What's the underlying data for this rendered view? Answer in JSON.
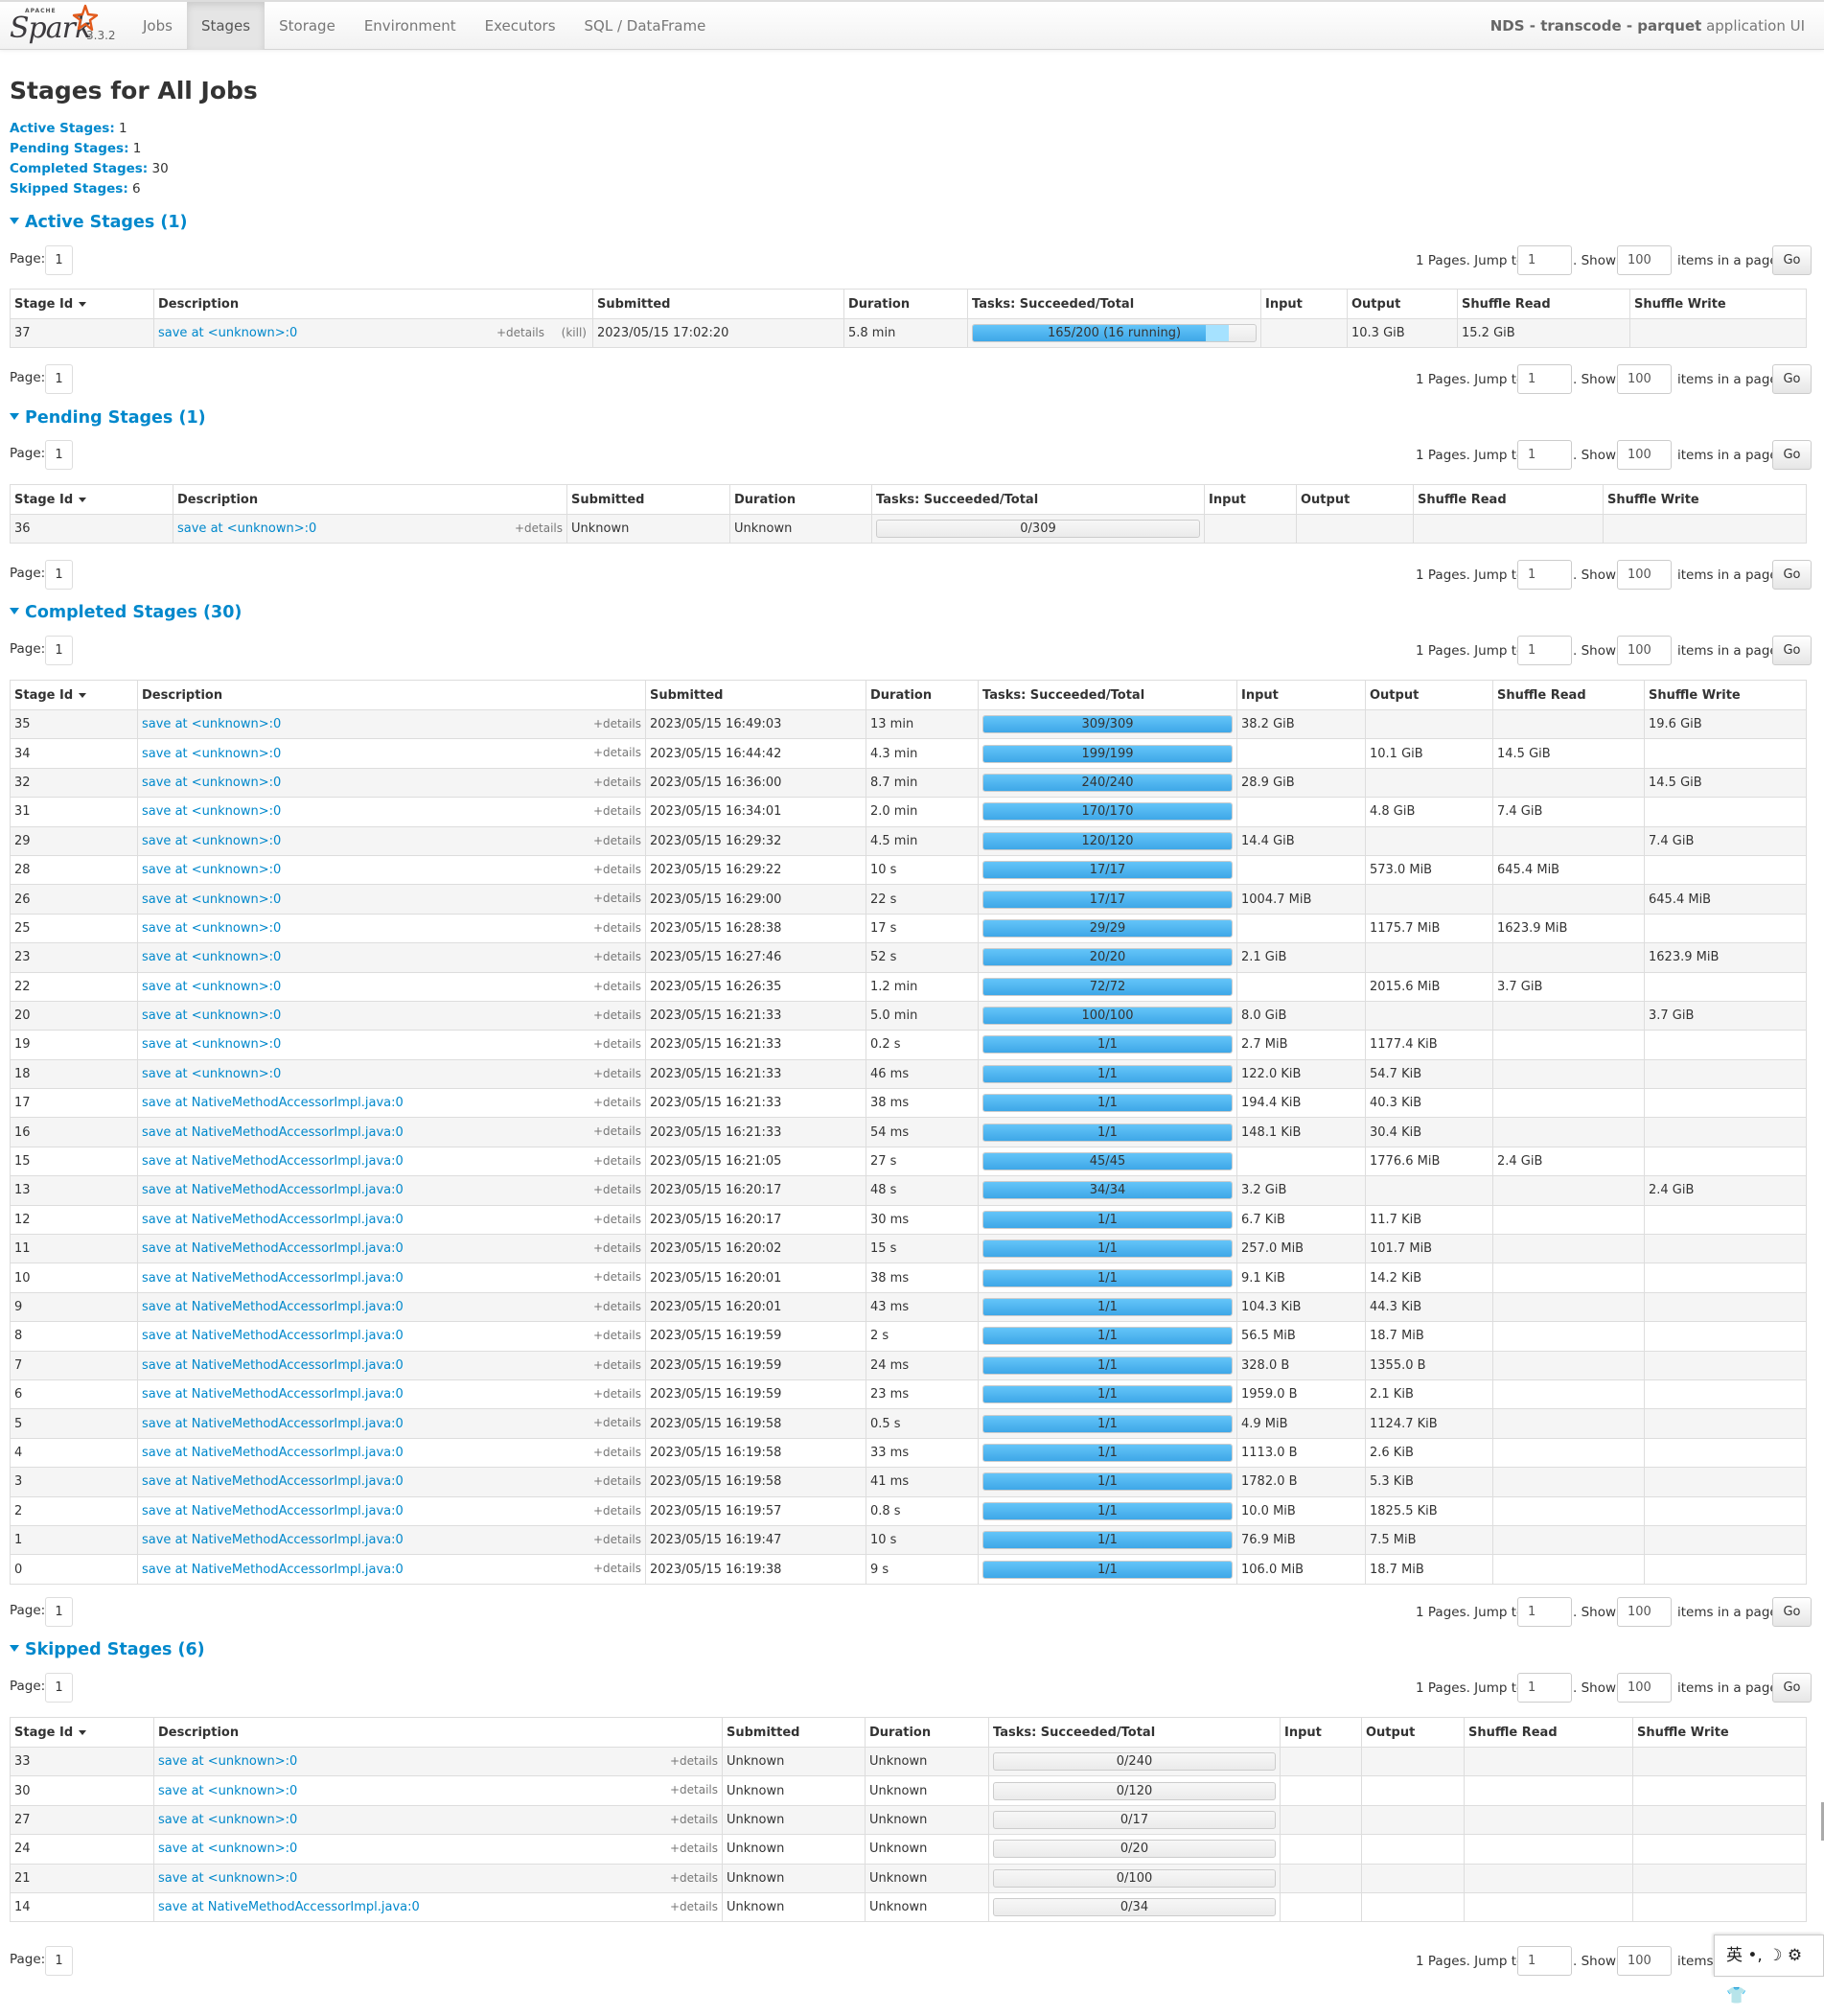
{
  "nav": {
    "brand_apache": "APACHE",
    "brand_name": "Spark",
    "version": "3.3.2",
    "tabs": [
      "Jobs",
      "Stages",
      "Storage",
      "Environment",
      "Executors",
      "SQL / DataFrame"
    ],
    "active_tab": "Stages",
    "app_name_bold": "NDS - transcode - parquet",
    "app_name_rest": " application UI"
  },
  "page": {
    "title": "Stages for All Jobs",
    "summary": [
      {
        "label": "Active Stages:",
        "value": "1"
      },
      {
        "label": "Pending Stages:",
        "value": "1"
      },
      {
        "label": "Completed Stages:",
        "value": "30"
      },
      {
        "label": "Skipped Stages:",
        "value": "6"
      }
    ]
  },
  "pager": {
    "page_label": "Page:",
    "page_value": "1",
    "pages_text": "1 Pages. Jump to",
    "jump_value": "1",
    "show_text": ". Show",
    "show_value": "100",
    "items_text": "items in a page.",
    "go_label": "Go"
  },
  "common": {
    "details": "+details",
    "kill": "(kill)"
  },
  "sections": {
    "active": {
      "title": "Active Stages (1)",
      "headers": [
        "Stage Id",
        "Description",
        "Submitted",
        "Duration",
        "Tasks: Succeeded/Total",
        "Input",
        "Output",
        "Shuffle Read",
        "Shuffle Write"
      ],
      "rows": [
        {
          "id": "37",
          "desc": "save at <unknown>:0",
          "submitted": "2023/05/15 17:02:20",
          "duration": "5.8 min",
          "tasks": "165/200 (16 running)",
          "done": 165,
          "running": 16,
          "total": 200,
          "input": "",
          "output": "10.3 GiB",
          "sread": "15.2 GiB",
          "swrite": ""
        }
      ]
    },
    "pending": {
      "title": "Pending Stages (1)",
      "headers": [
        "Stage Id",
        "Description",
        "Submitted",
        "Duration",
        "Tasks: Succeeded/Total",
        "Input",
        "Output",
        "Shuffle Read",
        "Shuffle Write"
      ],
      "rows": [
        {
          "id": "36",
          "desc": "save at <unknown>:0",
          "submitted": "Unknown",
          "duration": "Unknown",
          "tasks": "0/309",
          "done": 0,
          "total": 309,
          "input": "",
          "output": "",
          "sread": "",
          "swrite": ""
        }
      ]
    },
    "completed": {
      "title": "Completed Stages (30)",
      "headers": [
        "Stage Id",
        "Description",
        "Submitted",
        "Duration",
        "Tasks: Succeeded/Total",
        "Input",
        "Output",
        "Shuffle Read",
        "Shuffle Write"
      ],
      "rows": [
        {
          "id": "35",
          "desc": "save at <unknown>:0",
          "submitted": "2023/05/15 16:49:03",
          "duration": "13 min",
          "tasks": "309/309",
          "done": 309,
          "total": 309,
          "input": "38.2 GiB",
          "output": "",
          "sread": "",
          "swrite": "19.6 GiB"
        },
        {
          "id": "34",
          "desc": "save at <unknown>:0",
          "submitted": "2023/05/15 16:44:42",
          "duration": "4.3 min",
          "tasks": "199/199",
          "done": 199,
          "total": 199,
          "input": "",
          "output": "10.1 GiB",
          "sread": "14.5 GiB",
          "swrite": ""
        },
        {
          "id": "32",
          "desc": "save at <unknown>:0",
          "submitted": "2023/05/15 16:36:00",
          "duration": "8.7 min",
          "tasks": "240/240",
          "done": 240,
          "total": 240,
          "input": "28.9 GiB",
          "output": "",
          "sread": "",
          "swrite": "14.5 GiB"
        },
        {
          "id": "31",
          "desc": "save at <unknown>:0",
          "submitted": "2023/05/15 16:34:01",
          "duration": "2.0 min",
          "tasks": "170/170",
          "done": 170,
          "total": 170,
          "input": "",
          "output": "4.8 GiB",
          "sread": "7.4 GiB",
          "swrite": ""
        },
        {
          "id": "29",
          "desc": "save at <unknown>:0",
          "submitted": "2023/05/15 16:29:32",
          "duration": "4.5 min",
          "tasks": "120/120",
          "done": 120,
          "total": 120,
          "input": "14.4 GiB",
          "output": "",
          "sread": "",
          "swrite": "7.4 GiB"
        },
        {
          "id": "28",
          "desc": "save at <unknown>:0",
          "submitted": "2023/05/15 16:29:22",
          "duration": "10 s",
          "tasks": "17/17",
          "done": 17,
          "total": 17,
          "input": "",
          "output": "573.0 MiB",
          "sread": "645.4 MiB",
          "swrite": ""
        },
        {
          "id": "26",
          "desc": "save at <unknown>:0",
          "submitted": "2023/05/15 16:29:00",
          "duration": "22 s",
          "tasks": "17/17",
          "done": 17,
          "total": 17,
          "input": "1004.7 MiB",
          "output": "",
          "sread": "",
          "swrite": "645.4 MiB"
        },
        {
          "id": "25",
          "desc": "save at <unknown>:0",
          "submitted": "2023/05/15 16:28:38",
          "duration": "17 s",
          "tasks": "29/29",
          "done": 29,
          "total": 29,
          "input": "",
          "output": "1175.7 MiB",
          "sread": "1623.9 MiB",
          "swrite": ""
        },
        {
          "id": "23",
          "desc": "save at <unknown>:0",
          "submitted": "2023/05/15 16:27:46",
          "duration": "52 s",
          "tasks": "20/20",
          "done": 20,
          "total": 20,
          "input": "2.1 GiB",
          "output": "",
          "sread": "",
          "swrite": "1623.9 MiB"
        },
        {
          "id": "22",
          "desc": "save at <unknown>:0",
          "submitted": "2023/05/15 16:26:35",
          "duration": "1.2 min",
          "tasks": "72/72",
          "done": 72,
          "total": 72,
          "input": "",
          "output": "2015.6 MiB",
          "sread": "3.7 GiB",
          "swrite": ""
        },
        {
          "id": "20",
          "desc": "save at <unknown>:0",
          "submitted": "2023/05/15 16:21:33",
          "duration": "5.0 min",
          "tasks": "100/100",
          "done": 100,
          "total": 100,
          "input": "8.0 GiB",
          "output": "",
          "sread": "",
          "swrite": "3.7 GiB"
        },
        {
          "id": "19",
          "desc": "save at <unknown>:0",
          "submitted": "2023/05/15 16:21:33",
          "duration": "0.2 s",
          "tasks": "1/1",
          "done": 1,
          "total": 1,
          "input": "2.7 MiB",
          "output": "1177.4 KiB",
          "sread": "",
          "swrite": ""
        },
        {
          "id": "18",
          "desc": "save at <unknown>:0",
          "submitted": "2023/05/15 16:21:33",
          "duration": "46 ms",
          "tasks": "1/1",
          "done": 1,
          "total": 1,
          "input": "122.0 KiB",
          "output": "54.7 KiB",
          "sread": "",
          "swrite": ""
        },
        {
          "id": "17",
          "desc": "save at NativeMethodAccessorImpl.java:0",
          "submitted": "2023/05/15 16:21:33",
          "duration": "38 ms",
          "tasks": "1/1",
          "done": 1,
          "total": 1,
          "input": "194.4 KiB",
          "output": "40.3 KiB",
          "sread": "",
          "swrite": ""
        },
        {
          "id": "16",
          "desc": "save at NativeMethodAccessorImpl.java:0",
          "submitted": "2023/05/15 16:21:33",
          "duration": "54 ms",
          "tasks": "1/1",
          "done": 1,
          "total": 1,
          "input": "148.1 KiB",
          "output": "30.4 KiB",
          "sread": "",
          "swrite": ""
        },
        {
          "id": "15",
          "desc": "save at NativeMethodAccessorImpl.java:0",
          "submitted": "2023/05/15 16:21:05",
          "duration": "27 s",
          "tasks": "45/45",
          "done": 45,
          "total": 45,
          "input": "",
          "output": "1776.6 MiB",
          "sread": "2.4 GiB",
          "swrite": ""
        },
        {
          "id": "13",
          "desc": "save at NativeMethodAccessorImpl.java:0",
          "submitted": "2023/05/15 16:20:17",
          "duration": "48 s",
          "tasks": "34/34",
          "done": 34,
          "total": 34,
          "input": "3.2 GiB",
          "output": "",
          "sread": "",
          "swrite": "2.4 GiB"
        },
        {
          "id": "12",
          "desc": "save at NativeMethodAccessorImpl.java:0",
          "submitted": "2023/05/15 16:20:17",
          "duration": "30 ms",
          "tasks": "1/1",
          "done": 1,
          "total": 1,
          "input": "6.7 KiB",
          "output": "11.7 KiB",
          "sread": "",
          "swrite": ""
        },
        {
          "id": "11",
          "desc": "save at NativeMethodAccessorImpl.java:0",
          "submitted": "2023/05/15 16:20:02",
          "duration": "15 s",
          "tasks": "1/1",
          "done": 1,
          "total": 1,
          "input": "257.0 MiB",
          "output": "101.7 MiB",
          "sread": "",
          "swrite": ""
        },
        {
          "id": "10",
          "desc": "save at NativeMethodAccessorImpl.java:0",
          "submitted": "2023/05/15 16:20:01",
          "duration": "38 ms",
          "tasks": "1/1",
          "done": 1,
          "total": 1,
          "input": "9.1 KiB",
          "output": "14.2 KiB",
          "sread": "",
          "swrite": ""
        },
        {
          "id": "9",
          "desc": "save at NativeMethodAccessorImpl.java:0",
          "submitted": "2023/05/15 16:20:01",
          "duration": "43 ms",
          "tasks": "1/1",
          "done": 1,
          "total": 1,
          "input": "104.3 KiB",
          "output": "44.3 KiB",
          "sread": "",
          "swrite": ""
        },
        {
          "id": "8",
          "desc": "save at NativeMethodAccessorImpl.java:0",
          "submitted": "2023/05/15 16:19:59",
          "duration": "2 s",
          "tasks": "1/1",
          "done": 1,
          "total": 1,
          "input": "56.5 MiB",
          "output": "18.7 MiB",
          "sread": "",
          "swrite": ""
        },
        {
          "id": "7",
          "desc": "save at NativeMethodAccessorImpl.java:0",
          "submitted": "2023/05/15 16:19:59",
          "duration": "24 ms",
          "tasks": "1/1",
          "done": 1,
          "total": 1,
          "input": "328.0 B",
          "output": "1355.0 B",
          "sread": "",
          "swrite": ""
        },
        {
          "id": "6",
          "desc": "save at NativeMethodAccessorImpl.java:0",
          "submitted": "2023/05/15 16:19:59",
          "duration": "23 ms",
          "tasks": "1/1",
          "done": 1,
          "total": 1,
          "input": "1959.0 B",
          "output": "2.1 KiB",
          "sread": "",
          "swrite": ""
        },
        {
          "id": "5",
          "desc": "save at NativeMethodAccessorImpl.java:0",
          "submitted": "2023/05/15 16:19:58",
          "duration": "0.5 s",
          "tasks": "1/1",
          "done": 1,
          "total": 1,
          "input": "4.9 MiB",
          "output": "1124.7 KiB",
          "sread": "",
          "swrite": ""
        },
        {
          "id": "4",
          "desc": "save at NativeMethodAccessorImpl.java:0",
          "submitted": "2023/05/15 16:19:58",
          "duration": "33 ms",
          "tasks": "1/1",
          "done": 1,
          "total": 1,
          "input": "1113.0 B",
          "output": "2.6 KiB",
          "sread": "",
          "swrite": ""
        },
        {
          "id": "3",
          "desc": "save at NativeMethodAccessorImpl.java:0",
          "submitted": "2023/05/15 16:19:58",
          "duration": "41 ms",
          "tasks": "1/1",
          "done": 1,
          "total": 1,
          "input": "1782.0 B",
          "output": "5.3 KiB",
          "sread": "",
          "swrite": ""
        },
        {
          "id": "2",
          "desc": "save at NativeMethodAccessorImpl.java:0",
          "submitted": "2023/05/15 16:19:57",
          "duration": "0.8 s",
          "tasks": "1/1",
          "done": 1,
          "total": 1,
          "input": "10.0 MiB",
          "output": "1825.5 KiB",
          "sread": "",
          "swrite": ""
        },
        {
          "id": "1",
          "desc": "save at NativeMethodAccessorImpl.java:0",
          "submitted": "2023/05/15 16:19:47",
          "duration": "10 s",
          "tasks": "1/1",
          "done": 1,
          "total": 1,
          "input": "76.9 MiB",
          "output": "7.5 MiB",
          "sread": "",
          "swrite": ""
        },
        {
          "id": "0",
          "desc": "save at NativeMethodAccessorImpl.java:0",
          "submitted": "2023/05/15 16:19:38",
          "duration": "9 s",
          "tasks": "1/1",
          "done": 1,
          "total": 1,
          "input": "106.0 MiB",
          "output": "18.7 MiB",
          "sread": "",
          "swrite": ""
        }
      ]
    },
    "skipped": {
      "title": "Skipped Stages (6)",
      "headers": [
        "Stage Id",
        "Description",
        "Submitted",
        "Duration",
        "Tasks: Succeeded/Total",
        "Input",
        "Output",
        "Shuffle Read",
        "Shuffle Write"
      ],
      "rows": [
        {
          "id": "33",
          "desc": "save at <unknown>:0",
          "submitted": "Unknown",
          "duration": "Unknown",
          "tasks": "0/240",
          "done": 0,
          "total": 240,
          "input": "",
          "output": "",
          "sread": "",
          "swrite": ""
        },
        {
          "id": "30",
          "desc": "save at <unknown>:0",
          "submitted": "Unknown",
          "duration": "Unknown",
          "tasks": "0/120",
          "done": 0,
          "total": 120,
          "input": "",
          "output": "",
          "sread": "",
          "swrite": ""
        },
        {
          "id": "27",
          "desc": "save at <unknown>:0",
          "submitted": "Unknown",
          "duration": "Unknown",
          "tasks": "0/17",
          "done": 0,
          "total": 17,
          "input": "",
          "output": "",
          "sread": "",
          "swrite": ""
        },
        {
          "id": "24",
          "desc": "save at <unknown>:0",
          "submitted": "Unknown",
          "duration": "Unknown",
          "tasks": "0/20",
          "done": 0,
          "total": 20,
          "input": "",
          "output": "",
          "sread": "",
          "swrite": ""
        },
        {
          "id": "21",
          "desc": "save at <unknown>:0",
          "submitted": "Unknown",
          "duration": "Unknown",
          "tasks": "0/100",
          "done": 0,
          "total": 100,
          "input": "",
          "output": "",
          "sread": "",
          "swrite": ""
        },
        {
          "id": "14",
          "desc": "save at NativeMethodAccessorImpl.java:0",
          "submitted": "Unknown",
          "duration": "Unknown",
          "tasks": "0/34",
          "done": 0,
          "total": 34,
          "input": "",
          "output": "",
          "sread": "",
          "swrite": ""
        }
      ]
    }
  },
  "ime": {
    "text": "英 •, ☽ ⚙ 👕"
  }
}
